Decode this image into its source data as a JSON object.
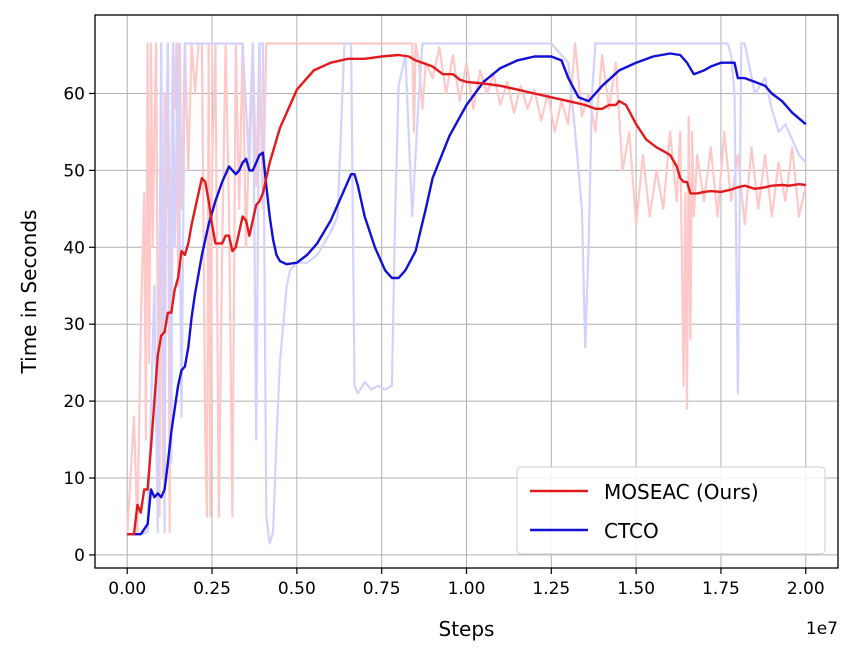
{
  "chart_data": {
    "type": "line",
    "xlabel": "Steps",
    "ylabel": "Time in Seconds",
    "x_offset_label": "1e7",
    "xlim": [
      -0.095,
      2.095
    ],
    "ylim": [
      -1.7,
      70.2
    ],
    "x_ticks": [
      0.0,
      0.25,
      0.5,
      0.75,
      1.0,
      1.25,
      1.5,
      1.75,
      2.0
    ],
    "x_tick_labels": [
      "0.00",
      "0.25",
      "0.50",
      "0.75",
      "1.00",
      "1.25",
      "1.50",
      "1.75",
      "2.00"
    ],
    "y_ticks": [
      0,
      10,
      20,
      30,
      40,
      50,
      60
    ],
    "y_tick_labels": [
      "0",
      "10",
      "20",
      "30",
      "40",
      "50",
      "60"
    ],
    "grid": true,
    "legend_position": "bottom-right",
    "series": [
      {
        "name": "MOSEAC (Ours)",
        "color": "#e31a1c",
        "raw_color": "#ffc8c8",
        "x": [
          0.0,
          0.01,
          0.02,
          0.03,
          0.04,
          0.05,
          0.06,
          0.07,
          0.08,
          0.09,
          0.1,
          0.11,
          0.12,
          0.13,
          0.14,
          0.15,
          0.16,
          0.17,
          0.18,
          0.19,
          0.2,
          0.21,
          0.22,
          0.23,
          0.24,
          0.25,
          0.26,
          0.27,
          0.28,
          0.29,
          0.3,
          0.31,
          0.32,
          0.33,
          0.34,
          0.35,
          0.36,
          0.37,
          0.38,
          0.39,
          0.4,
          0.42,
          0.45,
          0.5,
          0.55,
          0.6,
          0.65,
          0.7,
          0.75,
          0.8,
          0.83,
          0.85,
          0.87,
          0.9,
          0.93,
          0.96,
          0.98,
          1.0,
          1.05,
          1.1,
          1.15,
          1.2,
          1.25,
          1.3,
          1.35,
          1.38,
          1.4,
          1.42,
          1.44,
          1.45,
          1.47,
          1.5,
          1.53,
          1.56,
          1.58,
          1.6,
          1.62,
          1.63,
          1.64,
          1.65,
          1.66,
          1.68,
          1.7,
          1.72,
          1.75,
          1.78,
          1.8,
          1.82,
          1.85,
          1.88,
          1.9,
          1.93,
          1.95,
          1.98,
          2.0
        ],
        "y": [
          2.7,
          2.7,
          2.7,
          6.5,
          5.5,
          8.5,
          8.5,
          14.0,
          20.0,
          26.0,
          28.5,
          29.0,
          31.5,
          31.5,
          34.5,
          36.0,
          39.5,
          39.0,
          40.5,
          43.0,
          45.0,
          47.0,
          49.0,
          48.5,
          46.0,
          43.0,
          40.5,
          40.5,
          40.5,
          41.5,
          41.5,
          39.5,
          40.0,
          42.0,
          44.0,
          43.5,
          41.5,
          43.5,
          45.5,
          46.0,
          47.0,
          51.0,
          55.5,
          60.5,
          63.0,
          64.0,
          64.5,
          64.5,
          64.8,
          65.0,
          64.8,
          64.3,
          64.0,
          63.5,
          62.5,
          62.5,
          61.8,
          61.5,
          61.3,
          61.0,
          60.5,
          60.0,
          59.5,
          59.0,
          58.5,
          58.0,
          58.0,
          58.5,
          58.5,
          59.0,
          58.5,
          56.0,
          54.0,
          53.0,
          52.5,
          52.0,
          50.5,
          49.0,
          48.5,
          48.5,
          47.0,
          47.0,
          47.2,
          47.3,
          47.2,
          47.5,
          47.8,
          48.0,
          47.6,
          47.8,
          48.0,
          48.1,
          48.0,
          48.2,
          48.1
        ]
      },
      {
        "name": "CTCO",
        "color": "#1010d8",
        "raw_color": "#d2d2ff",
        "x": [
          0.0,
          0.02,
          0.04,
          0.06,
          0.07,
          0.08,
          0.09,
          0.1,
          0.11,
          0.12,
          0.13,
          0.14,
          0.15,
          0.16,
          0.17,
          0.18,
          0.19,
          0.2,
          0.22,
          0.24,
          0.26,
          0.28,
          0.3,
          0.32,
          0.33,
          0.34,
          0.35,
          0.36,
          0.37,
          0.38,
          0.39,
          0.4,
          0.41,
          0.42,
          0.43,
          0.44,
          0.45,
          0.47,
          0.5,
          0.53,
          0.56,
          0.6,
          0.63,
          0.66,
          0.67,
          0.68,
          0.7,
          0.73,
          0.76,
          0.78,
          0.8,
          0.82,
          0.85,
          0.88,
          0.9,
          0.95,
          1.0,
          1.05,
          1.1,
          1.15,
          1.2,
          1.25,
          1.28,
          1.3,
          1.33,
          1.36,
          1.37,
          1.38,
          1.4,
          1.45,
          1.5,
          1.55,
          1.6,
          1.63,
          1.65,
          1.67,
          1.7,
          1.72,
          1.75,
          1.78,
          1.79,
          1.8,
          1.82,
          1.85,
          1.88,
          1.9,
          1.93,
          1.96,
          2.0
        ],
        "y": [
          2.7,
          2.7,
          2.7,
          4.0,
          8.5,
          7.5,
          8.0,
          7.5,
          8.5,
          12.0,
          16.0,
          19.0,
          22.0,
          24.0,
          24.5,
          27.0,
          31.0,
          34.0,
          39.0,
          43.0,
          46.0,
          48.5,
          50.5,
          49.5,
          50.0,
          51.0,
          51.5,
          50.0,
          50.0,
          51.0,
          52.0,
          52.3,
          48.0,
          44.0,
          41.0,
          39.0,
          38.2,
          37.8,
          38.0,
          39.0,
          40.5,
          43.5,
          46.5,
          49.5,
          49.5,
          48.0,
          44.0,
          40.0,
          37.0,
          36.0,
          36.0,
          37.0,
          39.5,
          45.0,
          49.0,
          54.5,
          58.5,
          61.5,
          63.3,
          64.3,
          64.8,
          64.8,
          64.3,
          62.0,
          59.5,
          59.0,
          59.5,
          60.0,
          61.0,
          63.0,
          64.0,
          64.8,
          65.2,
          65.0,
          64.0,
          62.5,
          63.0,
          63.5,
          64.0,
          64.0,
          64.0,
          62.0,
          62.0,
          61.5,
          61.0,
          60.0,
          59.0,
          57.5,
          56.0
        ]
      }
    ],
    "raw_series": [
      {
        "name": "MOSEAC raw",
        "x": [
          0.0,
          0.02,
          0.03,
          0.04,
          0.05,
          0.055,
          0.06,
          0.065,
          0.07,
          0.075,
          0.08,
          0.085,
          0.09,
          0.095,
          0.1,
          0.105,
          0.11,
          0.115,
          0.12,
          0.125,
          0.13,
          0.135,
          0.14,
          0.145,
          0.15,
          0.155,
          0.16,
          0.17,
          0.18,
          0.19,
          0.2,
          0.21,
          0.22,
          0.23,
          0.235,
          0.24,
          0.245,
          0.25,
          0.26,
          0.27,
          0.28,
          0.29,
          0.3,
          0.31,
          0.32,
          0.33,
          0.34,
          0.35,
          0.36,
          0.37,
          0.38,
          0.39,
          0.4,
          0.41,
          0.42,
          0.45,
          0.5,
          0.55,
          0.6,
          0.65,
          0.7,
          0.75,
          0.8,
          0.82,
          0.84,
          0.845,
          0.85,
          0.86,
          0.87,
          0.88,
          0.9,
          0.92,
          0.94,
          0.96,
          0.98,
          1.0,
          1.02,
          1.04,
          1.06,
          1.08,
          1.1,
          1.12,
          1.14,
          1.16,
          1.18,
          1.2,
          1.22,
          1.24,
          1.26,
          1.28,
          1.3,
          1.32,
          1.34,
          1.36,
          1.38,
          1.4,
          1.42,
          1.44,
          1.46,
          1.48,
          1.5,
          1.52,
          1.54,
          1.56,
          1.58,
          1.6,
          1.62,
          1.63,
          1.64,
          1.645,
          1.65,
          1.655,
          1.66,
          1.665,
          1.67,
          1.68,
          1.7,
          1.72,
          1.74,
          1.76,
          1.78,
          1.8,
          1.82,
          1.84,
          1.86,
          1.88,
          1.9,
          1.92,
          1.94,
          1.96,
          1.98,
          2.0
        ],
        "y": [
          2.7,
          18.0,
          3.0,
          30.0,
          47.0,
          15.0,
          66.5,
          25.0,
          66.5,
          40.0,
          55.0,
          66.5,
          30.0,
          5.0,
          66.5,
          10.0,
          60.0,
          45.0,
          66.5,
          3.0,
          50.0,
          66.5,
          58.0,
          66.5,
          35.0,
          66.5,
          45.0,
          66.5,
          50.0,
          66.5,
          60.0,
          66.5,
          66.5,
          15.0,
          5.0,
          66.5,
          5.0,
          50.0,
          66.5,
          5.0,
          40.0,
          66.5,
          45.0,
          5.0,
          66.5,
          45.0,
          66.5,
          40.0,
          55.0,
          66.5,
          48.0,
          66.5,
          45.0,
          66.5,
          66.5,
          66.5,
          66.5,
          66.5,
          66.5,
          66.5,
          66.5,
          66.5,
          66.5,
          66.5,
          66.5,
          55.0,
          66.5,
          64.0,
          58.0,
          64.0,
          62.0,
          66.0,
          60.0,
          65.0,
          59.0,
          64.0,
          58.0,
          63.0,
          60.0,
          62.5,
          58.5,
          61.5,
          57.5,
          61.0,
          58.0,
          60.5,
          56.5,
          60.0,
          55.0,
          59.0,
          56.0,
          66.5,
          57.0,
          60.0,
          55.0,
          65.0,
          58.0,
          64.0,
          50.0,
          55.0,
          43.0,
          52.0,
          44.0,
          50.0,
          45.0,
          55.0,
          46.0,
          55.0,
          22.0,
          47.0,
          19.0,
          57.0,
          28.0,
          55.0,
          44.0,
          52.0,
          46.0,
          53.0,
          44.0,
          55.0,
          46.0,
          52.0,
          43.0,
          53.0,
          45.0,
          52.0,
          44.0,
          51.0,
          46.0,
          53.0,
          44.0,
          48.0
        ]
      },
      {
        "name": "CTCO raw",
        "x": [
          0.0,
          0.04,
          0.06,
          0.08,
          0.09,
          0.1,
          0.11,
          0.115,
          0.12,
          0.13,
          0.135,
          0.14,
          0.15,
          0.16,
          0.17,
          0.18,
          0.19,
          0.2,
          0.22,
          0.24,
          0.26,
          0.28,
          0.3,
          0.32,
          0.34,
          0.36,
          0.37,
          0.38,
          0.39,
          0.4,
          0.41,
          0.42,
          0.43,
          0.44,
          0.45,
          0.46,
          0.47,
          0.48,
          0.5,
          0.53,
          0.56,
          0.6,
          0.62,
          0.64,
          0.65,
          0.66,
          0.67,
          0.68,
          0.7,
          0.72,
          0.74,
          0.76,
          0.78,
          0.79,
          0.8,
          0.82,
          0.84,
          0.86,
          0.87,
          0.88,
          0.9,
          0.95,
          1.0,
          1.05,
          1.1,
          1.15,
          1.2,
          1.25,
          1.3,
          1.32,
          1.34,
          1.35,
          1.36,
          1.37,
          1.38,
          1.4,
          1.42,
          1.45,
          1.5,
          1.55,
          1.6,
          1.63,
          1.65,
          1.67,
          1.68,
          1.7,
          1.72,
          1.75,
          1.77,
          1.78,
          1.79,
          1.8,
          1.81,
          1.82,
          1.85,
          1.88,
          1.9,
          1.92,
          1.94,
          1.96,
          1.98,
          2.0
        ],
        "y": [
          2.7,
          2.7,
          3.0,
          35.0,
          3.0,
          66.5,
          3.0,
          55.0,
          66.5,
          12.0,
          66.5,
          40.0,
          66.5,
          18.0,
          66.5,
          66.5,
          66.5,
          66.5,
          66.5,
          66.5,
          66.5,
          66.5,
          66.5,
          66.5,
          66.5,
          50.0,
          66.5,
          15.0,
          66.5,
          66.5,
          5.0,
          1.5,
          3.0,
          15.0,
          25.0,
          30.0,
          35.0,
          37.0,
          38.0,
          38.0,
          39.0,
          42.0,
          44.0,
          66.5,
          66.5,
          66.5,
          22.0,
          21.0,
          22.5,
          21.5,
          22.0,
          21.5,
          22.0,
          45.0,
          61.0,
          65.0,
          44.0,
          60.0,
          66.5,
          66.5,
          66.5,
          66.5,
          66.5,
          66.5,
          66.5,
          66.5,
          66.5,
          66.5,
          64.0,
          55.0,
          45.0,
          27.0,
          40.0,
          60.0,
          66.5,
          66.5,
          66.5,
          66.5,
          66.5,
          66.5,
          66.5,
          66.5,
          66.5,
          66.5,
          66.5,
          66.5,
          66.5,
          66.5,
          66.5,
          65.0,
          60.0,
          21.0,
          66.5,
          66.5,
          60.0,
          62.0,
          58.0,
          55.0,
          56.0,
          54.0,
          52.0,
          51.0
        ]
      }
    ]
  }
}
